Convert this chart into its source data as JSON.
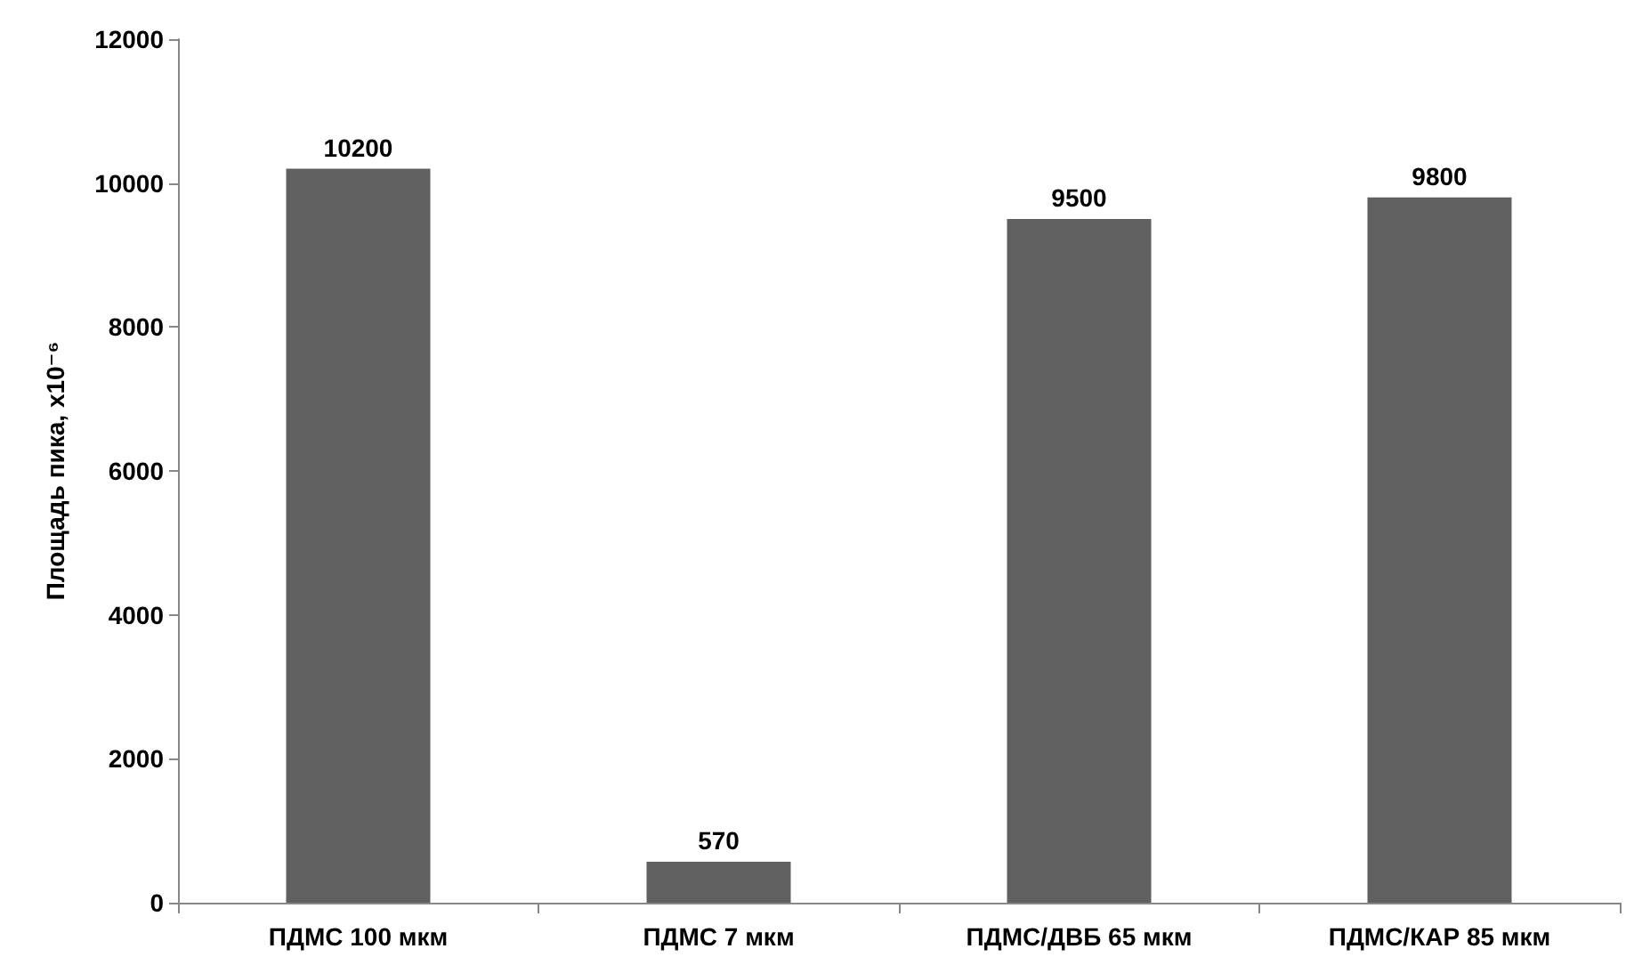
{
  "chart_data": {
    "type": "bar",
    "ylabel": "Площадь пика, x10⁻⁶",
    "categories": [
      "ПДМС 100 мкм",
      "ПДМС 7 мкм",
      "ПДМС/ДВБ 65 мкм",
      "ПДМС/КАР 85 мкм"
    ],
    "values": [
      10200,
      570,
      9500,
      9800
    ],
    "color": "#606060",
    "ylim": [
      0,
      12000
    ],
    "yticks": [
      0,
      2000,
      4000,
      6000,
      8000,
      10000,
      12000
    ],
    "grid": false,
    "data_labels": true
  }
}
